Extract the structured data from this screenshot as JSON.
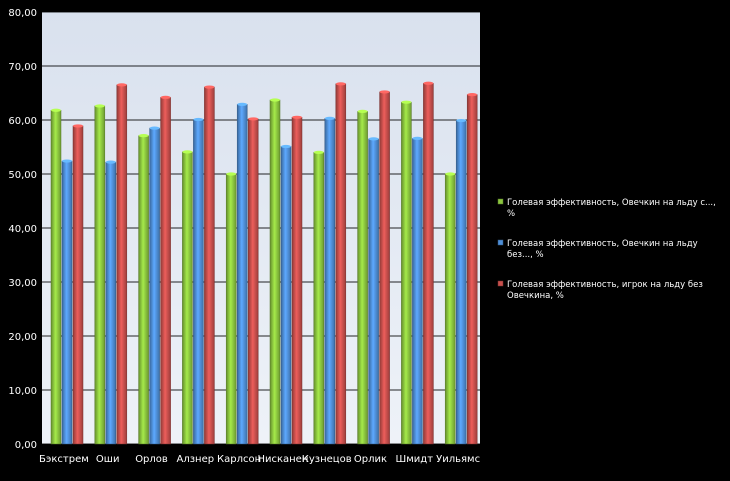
{
  "chart_data": {
    "type": "bar",
    "categories": [
      "Бэкстрем",
      "Оши",
      "Орлов",
      "Алзнер",
      "Карлсон",
      "Нисканен",
      "Кузнецов",
      "Орлик",
      "Шмидт",
      "Уильямс"
    ],
    "series": [
      {
        "name": "Голевая эффективность, Овечкин на льду с..., %",
        "color": "#8cc63f",
        "values": [
          61.8,
          62.6,
          57.1,
          54.1,
          50.0,
          63.7,
          54.0,
          61.6,
          63.3,
          50.0
        ]
      },
      {
        "name": "Голевая эффективность, Овечкин на льду без..., %",
        "color": "#4f8fd8",
        "values": [
          52.4,
          52.2,
          58.5,
          60.1,
          62.9,
          55.1,
          60.3,
          56.5,
          56.6,
          59.9
        ]
      },
      {
        "name": "Голевая эффективность, игрок на льду без Овечкина, %",
        "color": "#c9504d",
        "values": [
          58.9,
          66.5,
          64.2,
          66.1,
          60.2,
          60.5,
          66.7,
          65.2,
          66.8,
          64.7
        ]
      }
    ],
    "ylim": [
      0,
      80
    ],
    "yticks": [
      "0,00",
      "10,00",
      "20,00",
      "30,00",
      "40,00",
      "50,00",
      "60,00",
      "70,00",
      "80,00"
    ],
    "grid": true,
    "legend_position": "right"
  }
}
